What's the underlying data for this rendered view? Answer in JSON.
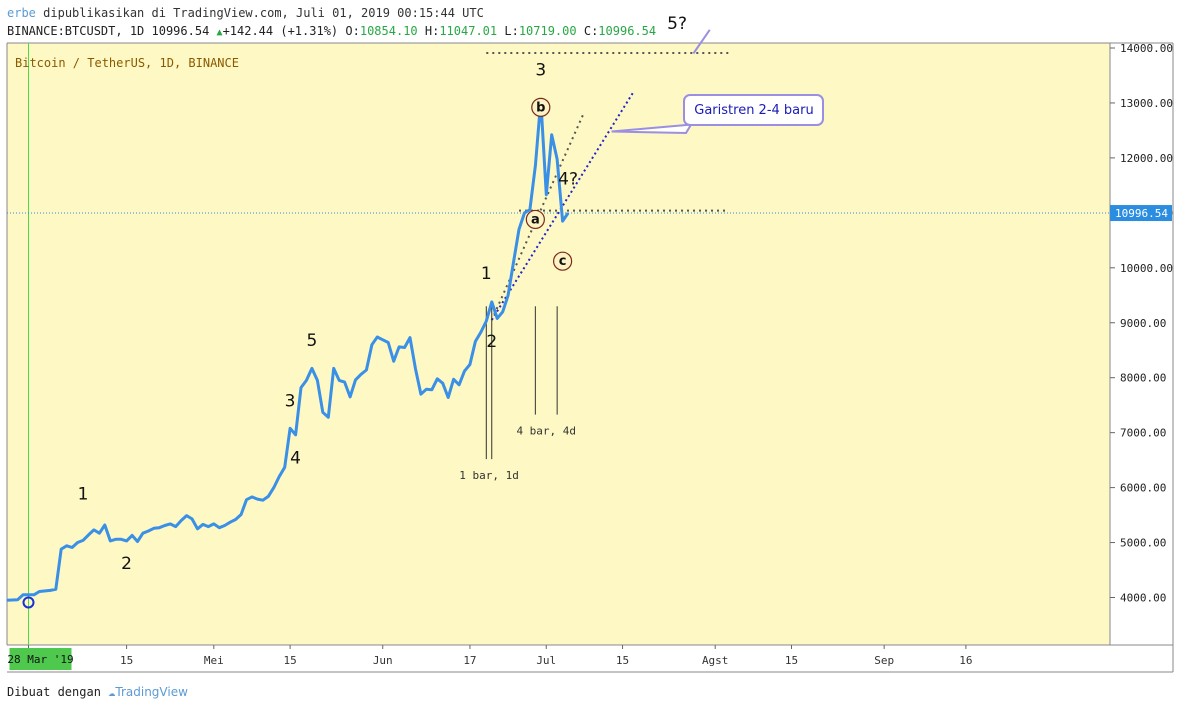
{
  "header": {
    "line1_user": "erbe",
    "line1_text": "dipublikasikan di TradingView.com, Juli 01, 2019 00:15:44 UTC",
    "symbol": "BINANCE:BTCUSDT, 1D 10996.54",
    "change": "+142.44 (+1.31%)",
    "o_label": "O:",
    "o_value": "10854.10",
    "h_label": "H:",
    "h_value": "11047.01",
    "l_label": "L:",
    "l_value": "10719.00",
    "c_label": "C:",
    "c_value": "10996.54"
  },
  "chart_title": "Bitcoin / TetherUS, 1D, BINANCE",
  "footer": {
    "text": "Dibuat dengan",
    "brand": "TradingView"
  },
  "colors": {
    "background": "#fdf8c4",
    "line": "#3a8fe6",
    "trend": "#2222cc",
    "dotted": "#555555",
    "current_price": "#2a8de0"
  },
  "chart_data": {
    "type": "line",
    "title": "Bitcoin / TetherUS, 1D, BINANCE",
    "ylim": [
      3000,
      14500
    ],
    "y_ticks": [
      "14000.00",
      "13000.00",
      "12000.00",
      "11000.00",
      "10000.00",
      "9000.00",
      "8000.00",
      "7000.00",
      "6000.00",
      "5000.00",
      "4000.00"
    ],
    "x_ticks": [
      {
        "label": "28 Mar '19",
        "date": "2019-03-28",
        "highlight": true
      },
      {
        "label": "15",
        "date": "2019-04-15"
      },
      {
        "label": "Mei",
        "date": "2019-05-01"
      },
      {
        "label": "15",
        "date": "2019-05-15"
      },
      {
        "label": "Jun",
        "date": "2019-06-01"
      },
      {
        "label": "17",
        "date": "2019-06-17"
      },
      {
        "label": "Jul",
        "date": "2019-07-01"
      },
      {
        "label": "15",
        "date": "2019-07-15"
      },
      {
        "label": "Agst",
        "date": "2019-08-01"
      },
      {
        "label": "15",
        "date": "2019-08-15"
      },
      {
        "label": "Sep",
        "date": "2019-09-01"
      },
      {
        "label": "16",
        "date": "2019-09-16"
      }
    ],
    "current_price": {
      "label": "10996.54",
      "value": 10996.54
    },
    "series": [
      {
        "values": [
          {
            "x": "2019-03-24",
            "y": 3950
          },
          {
            "x": "2019-03-26",
            "y": 3960
          },
          {
            "x": "2019-03-27",
            "y": 4050
          },
          {
            "x": "2019-03-29",
            "y": 4050
          },
          {
            "x": "2019-03-30",
            "y": 4110
          },
          {
            "x": "2019-04-01",
            "y": 4130
          },
          {
            "x": "2019-04-02",
            "y": 4150
          },
          {
            "x": "2019-04-03",
            "y": 4880
          },
          {
            "x": "2019-04-04",
            "y": 4940
          },
          {
            "x": "2019-04-05",
            "y": 4910
          },
          {
            "x": "2019-04-06",
            "y": 5000
          },
          {
            "x": "2019-04-07",
            "y": 5040
          },
          {
            "x": "2019-04-08",
            "y": 5140
          },
          {
            "x": "2019-04-09",
            "y": 5230
          },
          {
            "x": "2019-04-10",
            "y": 5170
          },
          {
            "x": "2019-04-11",
            "y": 5320
          },
          {
            "x": "2019-04-12",
            "y": 5030
          },
          {
            "x": "2019-04-13",
            "y": 5060
          },
          {
            "x": "2019-04-14",
            "y": 5060
          },
          {
            "x": "2019-04-15",
            "y": 5030
          },
          {
            "x": "2019-04-16",
            "y": 5130
          },
          {
            "x": "2019-04-17",
            "y": 5020
          },
          {
            "x": "2019-04-18",
            "y": 5170
          },
          {
            "x": "2019-04-19",
            "y": 5210
          },
          {
            "x": "2019-04-20",
            "y": 5260
          },
          {
            "x": "2019-04-21",
            "y": 5270
          },
          {
            "x": "2019-04-22",
            "y": 5310
          },
          {
            "x": "2019-04-23",
            "y": 5340
          },
          {
            "x": "2019-04-24",
            "y": 5290
          },
          {
            "x": "2019-04-25",
            "y": 5400
          },
          {
            "x": "2019-04-26",
            "y": 5490
          },
          {
            "x": "2019-04-27",
            "y": 5430
          },
          {
            "x": "2019-04-28",
            "y": 5250
          },
          {
            "x": "2019-04-29",
            "y": 5330
          },
          {
            "x": "2019-04-30",
            "y": 5290
          },
          {
            "x": "2019-05-01",
            "y": 5340
          },
          {
            "x": "2019-05-02",
            "y": 5270
          },
          {
            "x": "2019-05-03",
            "y": 5310
          },
          {
            "x": "2019-05-04",
            "y": 5370
          },
          {
            "x": "2019-05-05",
            "y": 5420
          },
          {
            "x": "2019-05-06",
            "y": 5510
          },
          {
            "x": "2019-05-07",
            "y": 5780
          },
          {
            "x": "2019-05-08",
            "y": 5830
          },
          {
            "x": "2019-05-09",
            "y": 5790
          },
          {
            "x": "2019-05-10",
            "y": 5770
          },
          {
            "x": "2019-05-11",
            "y": 5840
          },
          {
            "x": "2019-05-12",
            "y": 6000
          },
          {
            "x": "2019-05-13",
            "y": 6200
          },
          {
            "x": "2019-05-14",
            "y": 6370
          },
          {
            "x": "2019-05-15",
            "y": 7080
          },
          {
            "x": "2019-05-16",
            "y": 6960
          },
          {
            "x": "2019-05-17",
            "y": 7820
          },
          {
            "x": "2019-05-18",
            "y": 7950
          },
          {
            "x": "2019-05-19",
            "y": 8170
          },
          {
            "x": "2019-05-20",
            "y": 7950
          },
          {
            "x": "2019-05-21",
            "y": 7370
          },
          {
            "x": "2019-05-22",
            "y": 7280
          },
          {
            "x": "2019-05-23",
            "y": 8170
          },
          {
            "x": "2019-05-24",
            "y": 7950
          },
          {
            "x": "2019-05-25",
            "y": 7920
          },
          {
            "x": "2019-05-26",
            "y": 7650
          },
          {
            "x": "2019-05-27",
            "y": 7960
          },
          {
            "x": "2019-05-28",
            "y": 8060
          },
          {
            "x": "2019-05-29",
            "y": 8140
          },
          {
            "x": "2019-05-30",
            "y": 8600
          },
          {
            "x": "2019-05-31",
            "y": 8740
          },
          {
            "x": "2019-06-01",
            "y": 8690
          },
          {
            "x": "2019-06-02",
            "y": 8640
          },
          {
            "x": "2019-06-03",
            "y": 8300
          },
          {
            "x": "2019-06-04",
            "y": 8560
          },
          {
            "x": "2019-06-05",
            "y": 8550
          },
          {
            "x": "2019-06-06",
            "y": 8730
          },
          {
            "x": "2019-06-07",
            "y": 8170
          },
          {
            "x": "2019-06-08",
            "y": 7700
          },
          {
            "x": "2019-06-09",
            "y": 7790
          },
          {
            "x": "2019-06-10",
            "y": 7780
          },
          {
            "x": "2019-06-11",
            "y": 7980
          },
          {
            "x": "2019-06-12",
            "y": 7900
          },
          {
            "x": "2019-06-13",
            "y": 7640
          },
          {
            "x": "2019-06-14",
            "y": 7970
          },
          {
            "x": "2019-06-15",
            "y": 7870
          },
          {
            "x": "2019-06-16",
            "y": 8120
          },
          {
            "x": "2019-06-17",
            "y": 8240
          },
          {
            "x": "2019-06-18",
            "y": 8660
          },
          {
            "x": "2019-06-19",
            "y": 8830
          },
          {
            "x": "2019-06-20",
            "y": 9030
          },
          {
            "x": "2019-06-21",
            "y": 9380
          },
          {
            "x": "2019-06-22",
            "y": 9080
          },
          {
            "x": "2019-06-23",
            "y": 9200
          },
          {
            "x": "2019-06-24",
            "y": 9500
          },
          {
            "x": "2019-06-25",
            "y": 10100
          },
          {
            "x": "2019-06-26",
            "y": 10700
          },
          {
            "x": "2019-06-27",
            "y": 11000
          },
          {
            "x": "2019-06-28",
            "y": 11060
          },
          {
            "x": "2019-06-29",
            "y": 11860
          },
          {
            "x": "2019-06-30",
            "y": 13050
          },
          {
            "x": "2019-07-01",
            "y": 11330
          },
          {
            "x": "2019-07-02",
            "y": 12420
          },
          {
            "x": "2019-07-03",
            "y": 11980
          },
          {
            "x": "2019-07-04",
            "y": 10850
          },
          {
            "x": "2019-07-05",
            "y": 10996.54
          }
        ]
      }
    ],
    "annotations": {
      "wave_labels": [
        {
          "text": "1",
          "x": "2019-04-07",
          "y": 5780
        },
        {
          "text": "2",
          "x": "2019-04-15",
          "y": 4520
        },
        {
          "text": "3",
          "x": "2019-05-15",
          "y": 7480
        },
        {
          "text": "4",
          "x": "2019-05-16",
          "y": 6440
        },
        {
          "text": "5",
          "x": "2019-05-19",
          "y": 8580
        },
        {
          "text": "1",
          "x": "2019-06-20",
          "y": 9800
        },
        {
          "text": "2",
          "x": "2019-06-21",
          "y": 8560
        },
        {
          "text": "3",
          "x": "2019-06-30",
          "y": 13500
        },
        {
          "text": "4?",
          "x": "2019-07-05",
          "y": 11520
        },
        {
          "text": "5?",
          "x": "2019-07-25",
          "y": 14350
        }
      ],
      "circle_labels": [
        {
          "text": "b",
          "x": "2019-06-30",
          "y": 12920
        },
        {
          "text": "a",
          "x": "2019-06-29",
          "y": 10880
        },
        {
          "text": "c",
          "x": "2019-07-04",
          "y": 10120
        }
      ],
      "callout": {
        "text": "Garistren 2-4 baru"
      },
      "ranges": [
        {
          "text": "1 bar, 1d",
          "from": "2019-06-20",
          "to": "2019-06-21",
          "y": 6700
        },
        {
          "text": "4 bar, 4d",
          "from": "2019-06-29",
          "to": "2019-07-03",
          "y": 7510
        }
      ]
    }
  }
}
